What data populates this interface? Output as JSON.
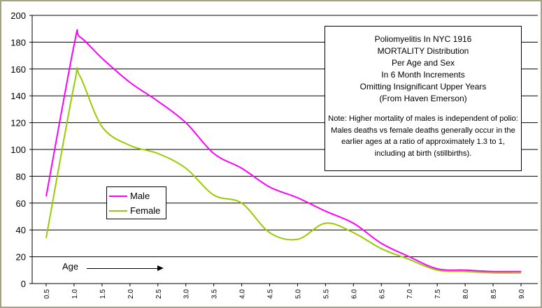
{
  "chart_data": {
    "type": "line",
    "title": "",
    "xlabel": "",
    "ylabel": "",
    "x": [
      "0.5",
      "1.0",
      "1.5",
      "2.0",
      "2.5",
      "3.0",
      "3.5",
      "4.0",
      "4.5",
      "5.0",
      "5.5",
      "6.0",
      "6.5",
      "7.0",
      "7.5",
      "8.0",
      "8.5",
      "9.0"
    ],
    "x_values": [
      0.5,
      1.0,
      1.1,
      1.5,
      2.0,
      2.5,
      3.0,
      3.5,
      4.0,
      4.5,
      5.0,
      5.5,
      6.0,
      6.5,
      7.0,
      7.5,
      8.0,
      8.5,
      9.0
    ],
    "ylim": [
      0,
      200
    ],
    "yticks": [
      0,
      20,
      40,
      60,
      80,
      100,
      120,
      140,
      160,
      180,
      200
    ],
    "grid": true,
    "legend_placement": "lower-left",
    "series": [
      {
        "name": "Male",
        "color": "#ff00ff",
        "values": [
          65,
          178,
          184,
          168,
          150,
          136,
          120,
          97,
          86,
          72,
          64,
          54,
          45,
          30,
          20,
          11,
          10,
          9,
          9
        ]
      },
      {
        "name": "Female",
        "color": "#99cc00",
        "values": [
          34,
          148,
          155,
          117,
          103,
          97,
          86,
          66,
          60,
          38,
          33,
          45,
          38,
          26,
          18,
          10,
          9,
          8,
          8
        ]
      }
    ],
    "annotations": {
      "box_title_lines": [
        "Poliomyelitis In NYC 1916",
        "MORTALITY Distribution",
        "Per Age and Sex",
        "In 6 Month Increments",
        "Omitting Insignificant Upper Years",
        "(From Haven Emerson)"
      ],
      "box_note": "Note: Higher mortality of  males is independent of polio:  Males deaths vs female deaths generally occur in the earlier ages at a ratio of approximately 1.3 to 1, including at birth (stillbirths).",
      "age_label": "Age"
    }
  }
}
